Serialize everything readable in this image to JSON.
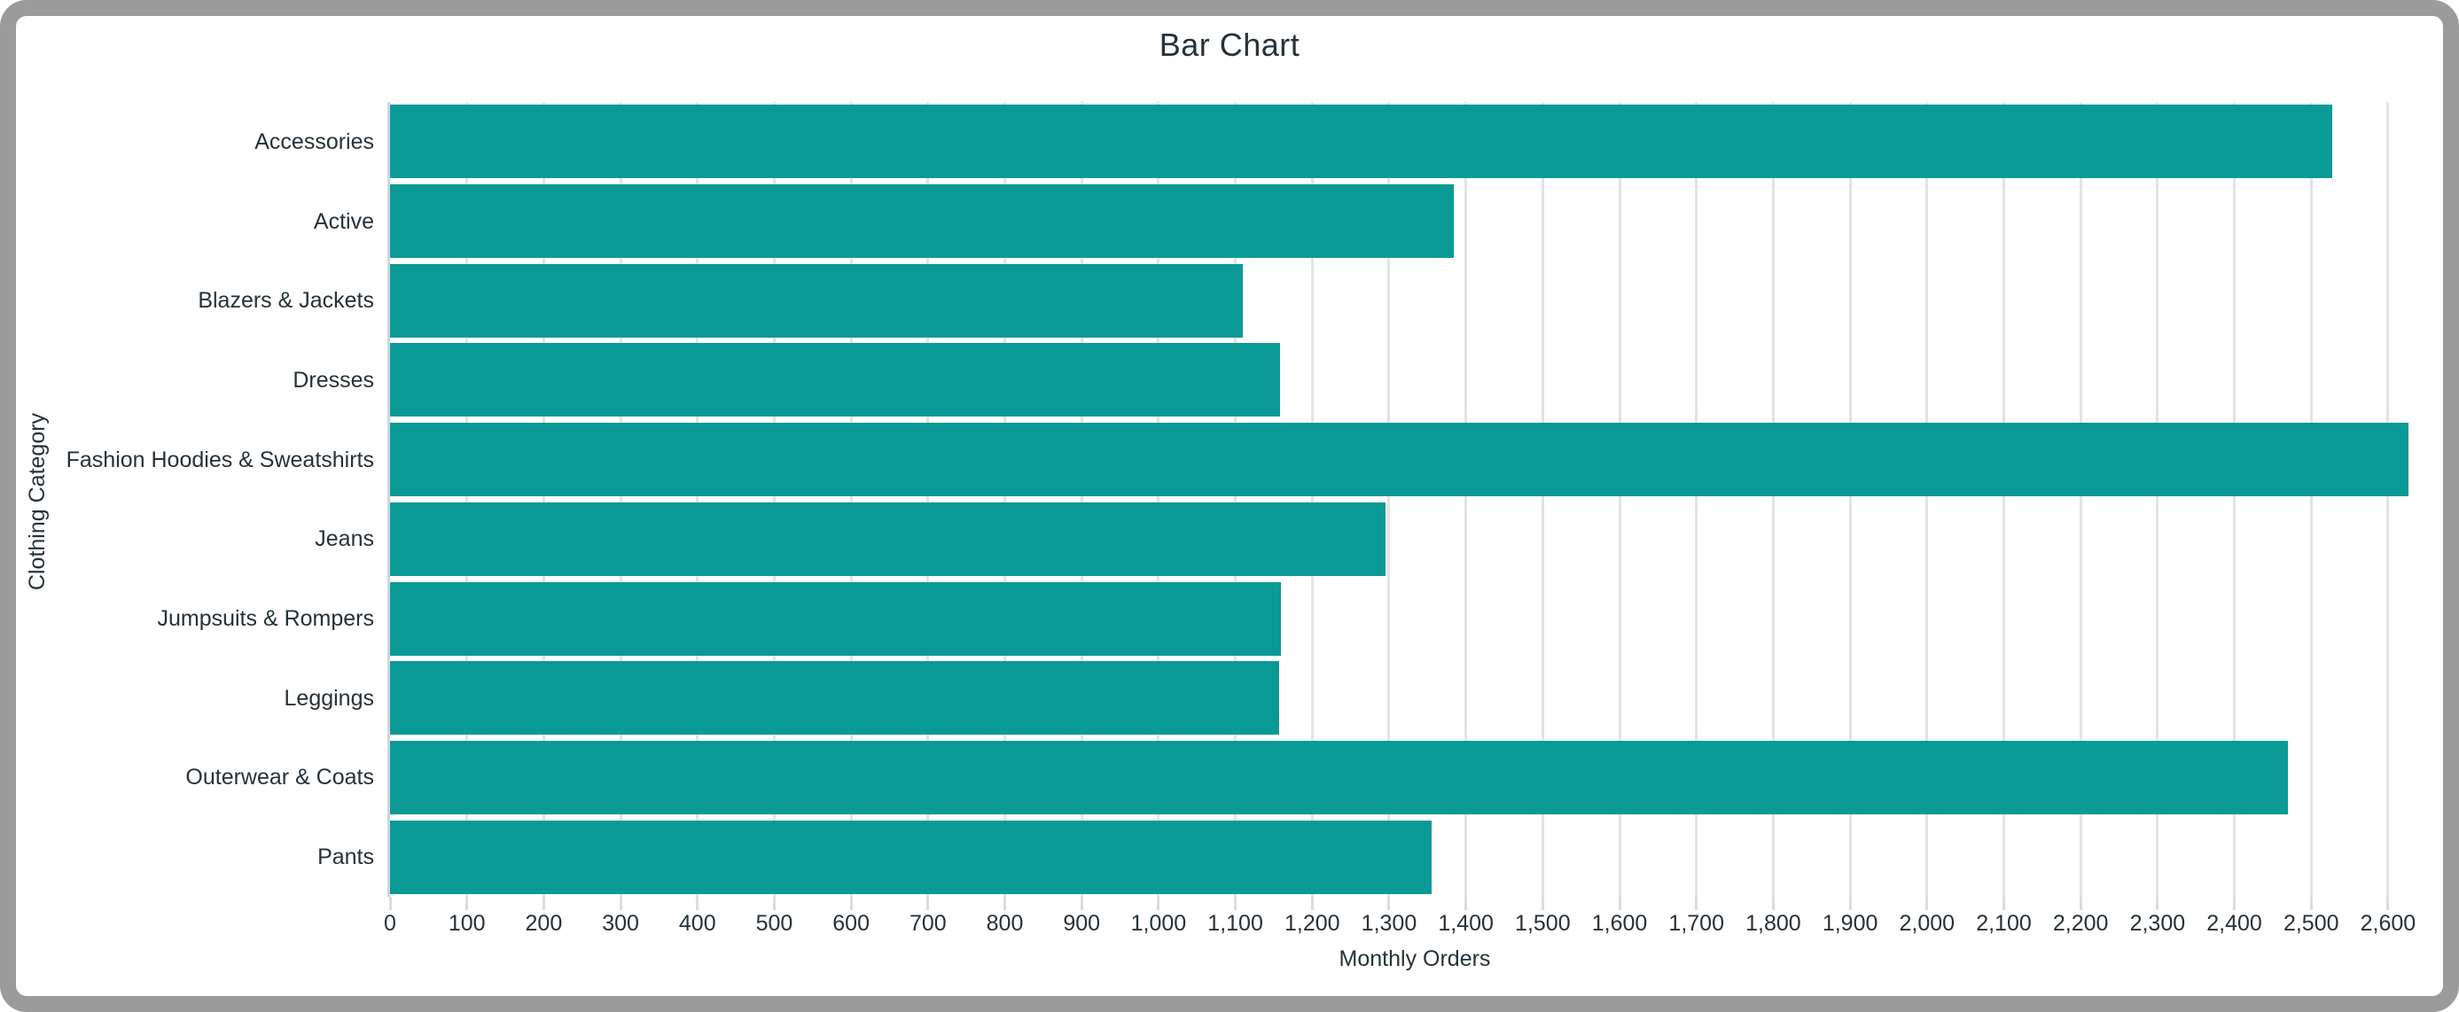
{
  "frame": {
    "border_color": "#9b9b9b",
    "background_color": "#ffffff"
  },
  "chart_data": {
    "type": "bar",
    "orientation": "horizontal",
    "title": "Bar Chart",
    "xlabel": "Monthly Orders",
    "ylabel": "Clothing Category",
    "categories": [
      "Accessories",
      "Active",
      "Blazers & Jackets",
      "Dresses",
      "Fashion Hoodies & Sweatshirts",
      "Jeans",
      "Jumpsuits & Rompers",
      "Leggings",
      "Outerwear & Coats",
      "Pants"
    ],
    "values": [
      2527,
      1384,
      1110,
      1158,
      2627,
      1296,
      1159,
      1157,
      2470,
      1355
    ],
    "xlim": [
      0,
      2667
    ],
    "xticks": [
      0,
      100,
      200,
      300,
      400,
      500,
      600,
      700,
      800,
      900,
      1000,
      1100,
      1200,
      1300,
      1400,
      1500,
      1600,
      1700,
      1800,
      1900,
      2000,
      2100,
      2200,
      2300,
      2400,
      2500,
      2600
    ],
    "xtick_labels": [
      "0",
      "100",
      "200",
      "300",
      "400",
      "500",
      "600",
      "700",
      "800",
      "900",
      "1,000",
      "1,100",
      "1,200",
      "1,300",
      "1,400",
      "1,500",
      "1,600",
      "1,700",
      "1,800",
      "1,900",
      "2,000",
      "2,100",
      "2,200",
      "2,300",
      "2,400",
      "2,500",
      "2,600"
    ],
    "grid": true,
    "legend": "none",
    "bar_color": "#0a9a95",
    "gridline_color": "#e3e3e3",
    "axis_line_color": "#ccd5e3",
    "text_color": "#263238"
  }
}
